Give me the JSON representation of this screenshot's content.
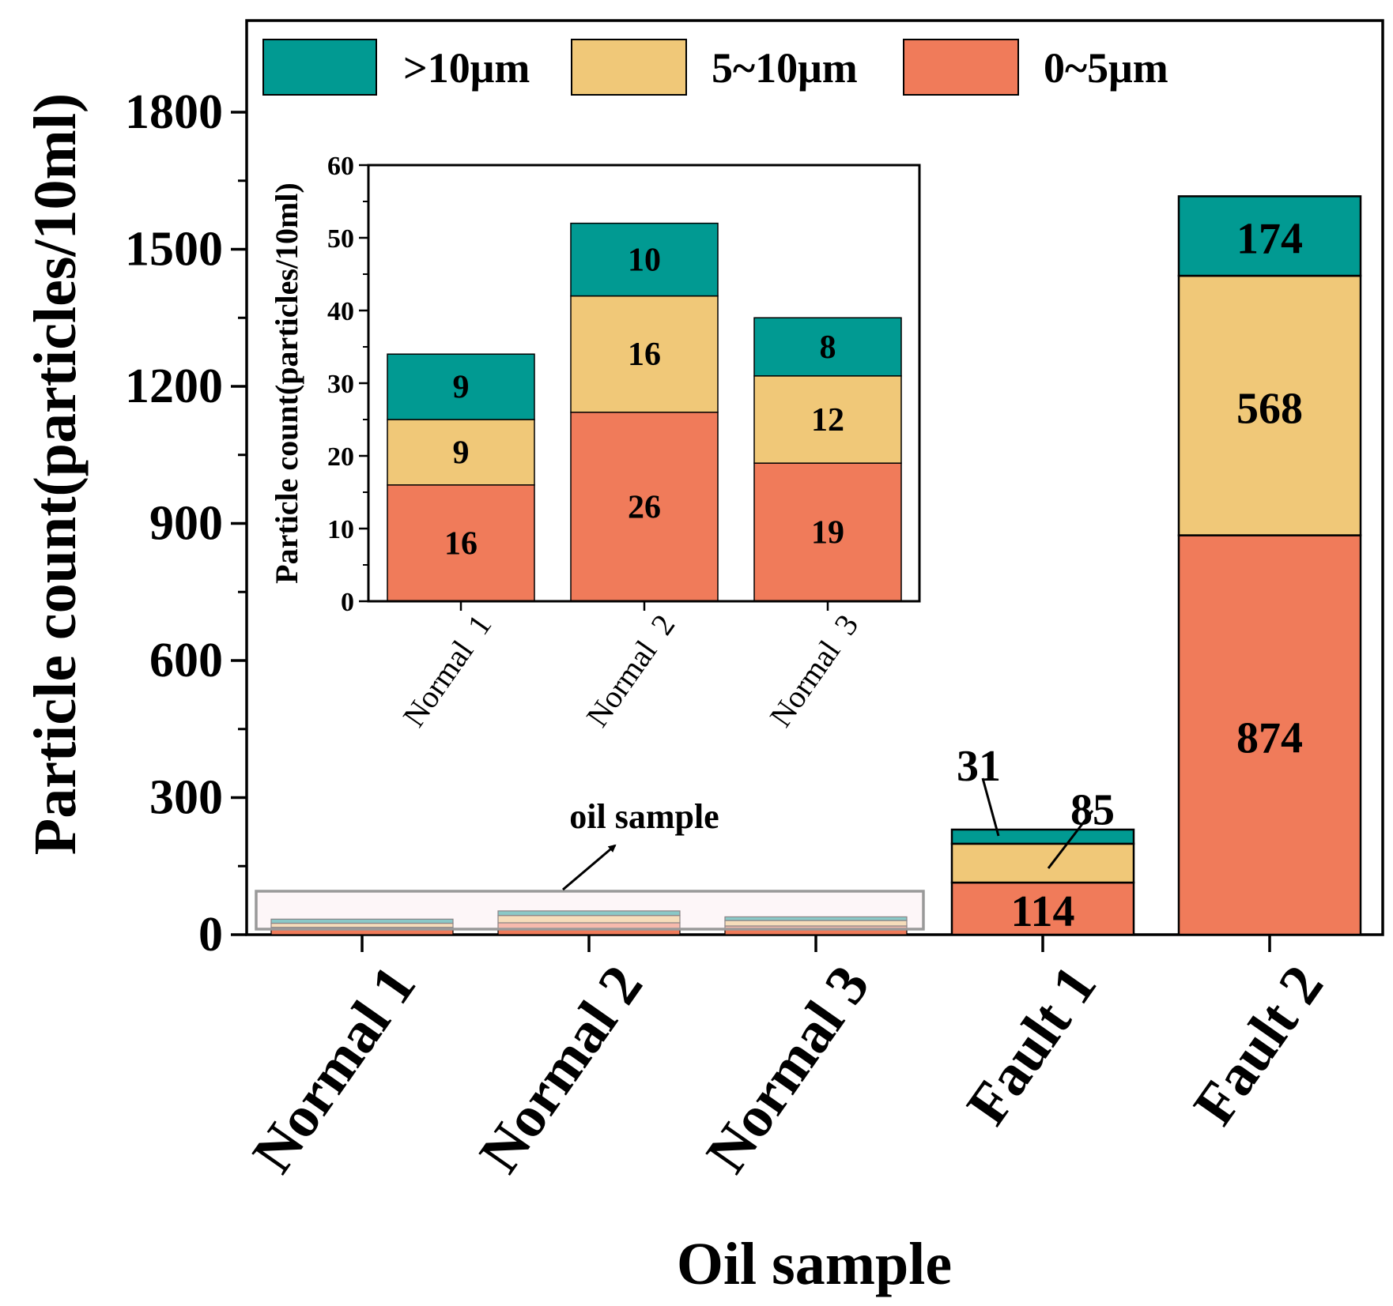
{
  "chart_data": [
    {
      "type": "bar",
      "stacked": true,
      "xlabel": "Oil sample",
      "ylabel": "Particle count(particles/10ml)",
      "ylim": [
        0,
        1800
      ],
      "yticks": [
        0,
        300,
        600,
        900,
        1200,
        1500,
        1800
      ],
      "categories": [
        "Normal 1",
        "Normal 2",
        "Normal 3",
        "Fault 1",
        "Fault 2"
      ],
      "series": [
        {
          "name": "0~5μm",
          "color": "#f07b5a",
          "values": [
            16,
            26,
            19,
            114,
            874
          ]
        },
        {
          "name": "5~10μm",
          "color": "#f0c878",
          "values": [
            9,
            16,
            12,
            85,
            568
          ]
        },
        {
          "name": ">10μm",
          "color": "#019a92",
          "values": [
            9,
            10,
            8,
            31,
            174
          ]
        }
      ],
      "value_labels": [
        [
          "",
          "",
          "",
          "114",
          "874"
        ],
        [
          "",
          "",
          "",
          "85",
          "568"
        ],
        [
          "",
          "",
          "",
          "31",
          "174"
        ]
      ],
      "legend": {
        "position": "top",
        "order": [
          ">10μm",
          "5~10μm",
          "0~5μm"
        ]
      },
      "annotation": "oil sample"
    },
    {
      "type": "bar",
      "stacked": true,
      "inset": true,
      "xlabel": "",
      "ylabel": "Particle count(particles/10ml)",
      "ylim": [
        0,
        60
      ],
      "yticks": [
        0,
        10,
        20,
        30,
        40,
        50,
        60
      ],
      "categories": [
        "Normal  1",
        "Normal  2",
        "Normal  3"
      ],
      "series": [
        {
          "name": "0~5μm",
          "color": "#f07b5a",
          "values": [
            16,
            26,
            19
          ]
        },
        {
          "name": "5~10μm",
          "color": "#f0c878",
          "values": [
            9,
            16,
            12
          ]
        },
        {
          "name": ">10μm",
          "color": "#019a92",
          "values": [
            9,
            10,
            8
          ]
        }
      ]
    }
  ]
}
